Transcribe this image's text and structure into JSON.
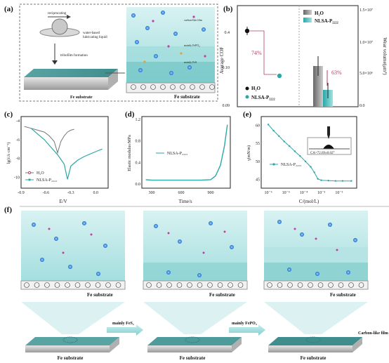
{
  "panels": {
    "a": {
      "label": "(a)",
      "top_label_1": "reciprocating",
      "top_label_2": "water-based",
      "top_label_3": "lubricating liquid",
      "process": "tribofilm formation",
      "substrate_left": "Fe substrate",
      "substrate_right": "Fe substrate",
      "layer_1": "carbon-like film",
      "layer_2": "mainly FePO₄",
      "layer_3": "mainly FeS"
    },
    "b": {
      "label": "(b)",
      "legend_h2o": "H₂O",
      "legend_nlsa": "NLSA-P₂₂₂₂",
      "pct_cof": "74%",
      "pct_wear": "63%",
      "ylabel_left": "Average COF",
      "ylabel_right": "Wear volume(μm³)",
      "right_ticks": [
        "0.0",
        "5.0×10⁶",
        "1.0×10⁷",
        "1.5×10⁷"
      ],
      "left_ticks": [
        "0.09",
        "0.10",
        "0.4"
      ]
    },
    "c": {
      "label": "(c)",
      "ylabel": "lg(i/A·cm⁻²)",
      "xlabel": "E/V",
      "legend_h2o": "H₂O",
      "legend_nlsa": "NLSA-P₂₂₂₂",
      "x_ticks": [
        "-0.9",
        "-0.6",
        "-0.3",
        "0.0"
      ],
      "y_ticks": [
        "-4",
        "-6",
        "-8",
        "-10"
      ]
    },
    "d": {
      "label": "(d)",
      "ylabel": "Elastic modulus/MPa",
      "xlabel": "Time/s",
      "legend": "NLSA-P₂₂₂₂",
      "x_ticks": [
        "300",
        "600",
        "900"
      ],
      "y_ticks": [
        "0.0",
        "0.4",
        "0.8",
        "1.2"
      ]
    },
    "e": {
      "label": "(e)",
      "ylabel": "γ(mN/m)",
      "xlabel": "C/(mol/L)",
      "legend": "NLSA-P₂₂₂₂",
      "inset": "CA=72.69±0.02°",
      "x_ticks": [
        "10⁻⁶",
        "10⁻⁵",
        "10⁻⁴",
        "10⁻³",
        "10⁻²"
      ],
      "y_ticks": [
        "60",
        "55",
        "50",
        "45"
      ]
    },
    "f": {
      "label": "(f)",
      "substrate": "Fe substrate",
      "arrow_1": "mainly FeS₂",
      "arrow_2": "mainly FePO₄",
      "end_label": "Carbon-like film"
    }
  },
  "chart_data": [
    {
      "type": "bar",
      "panel": "b",
      "categories": [
        "H₂O",
        "NLSA-P₂₂₂₂"
      ],
      "cof": [
        0.41,
        0.106
      ],
      "wear_volume": [
        5800000.0,
        2200000.0
      ]
    },
    {
      "type": "line",
      "panel": "c",
      "series": [
        {
          "name": "H₂O",
          "x": [
            -0.86,
            -0.78,
            -0.7,
            -0.62,
            -0.56,
            -0.5,
            -0.46,
            -0.42,
            -0.38,
            -0.34,
            -0.3,
            -0.26
          ],
          "y": [
            -4.6,
            -4.8,
            -5.0,
            -5.2,
            -5.6,
            -6.2,
            -7.4,
            -6.2,
            -5.6,
            -5.2,
            -5.0,
            -4.9
          ]
        },
        {
          "name": "NLSA-P₂₂₂₂",
          "x": [
            -0.78,
            -0.7,
            -0.62,
            -0.54,
            -0.46,
            -0.38,
            -0.34,
            -0.3,
            -0.22,
            -0.14,
            -0.06,
            0.02,
            0.08
          ],
          "y": [
            -4.8,
            -5.4,
            -6.0,
            -6.8,
            -7.6,
            -8.6,
            -10.2,
            -8.8,
            -8.2,
            -7.8,
            -7.5,
            -7.2,
            -7.0
          ]
        }
      ]
    },
    {
      "type": "line",
      "panel": "d",
      "series": [
        {
          "name": "NLSA-P₂₂₂₂",
          "x": [
            240,
            300,
            400,
            500,
            600,
            700,
            800,
            900,
            950,
            1000,
            1040,
            1070
          ],
          "y": [
            0.08,
            0.07,
            0.07,
            0.07,
            0.07,
            0.07,
            0.07,
            0.08,
            0.15,
            0.35,
            0.7,
            1.1
          ]
        }
      ]
    },
    {
      "type": "line",
      "panel": "e",
      "series": [
        {
          "name": "NLSA-P₂₂₂₂",
          "x": [
            -6,
            -5.7,
            -5.4,
            -5.1,
            -4.8,
            -4.5,
            -4.2,
            -3.9,
            -3.6,
            -3.4,
            -3.2,
            -3.0,
            -2.6,
            -2.2,
            -1.8,
            -1.3
          ],
          "y": [
            60.2,
            58.5,
            57.0,
            55.5,
            54.2,
            52.8,
            51.5,
            50.0,
            48.5,
            47.0,
            45.2,
            44.8,
            44.7,
            44.6,
            44.6,
            44.6
          ]
        }
      ]
    }
  ]
}
